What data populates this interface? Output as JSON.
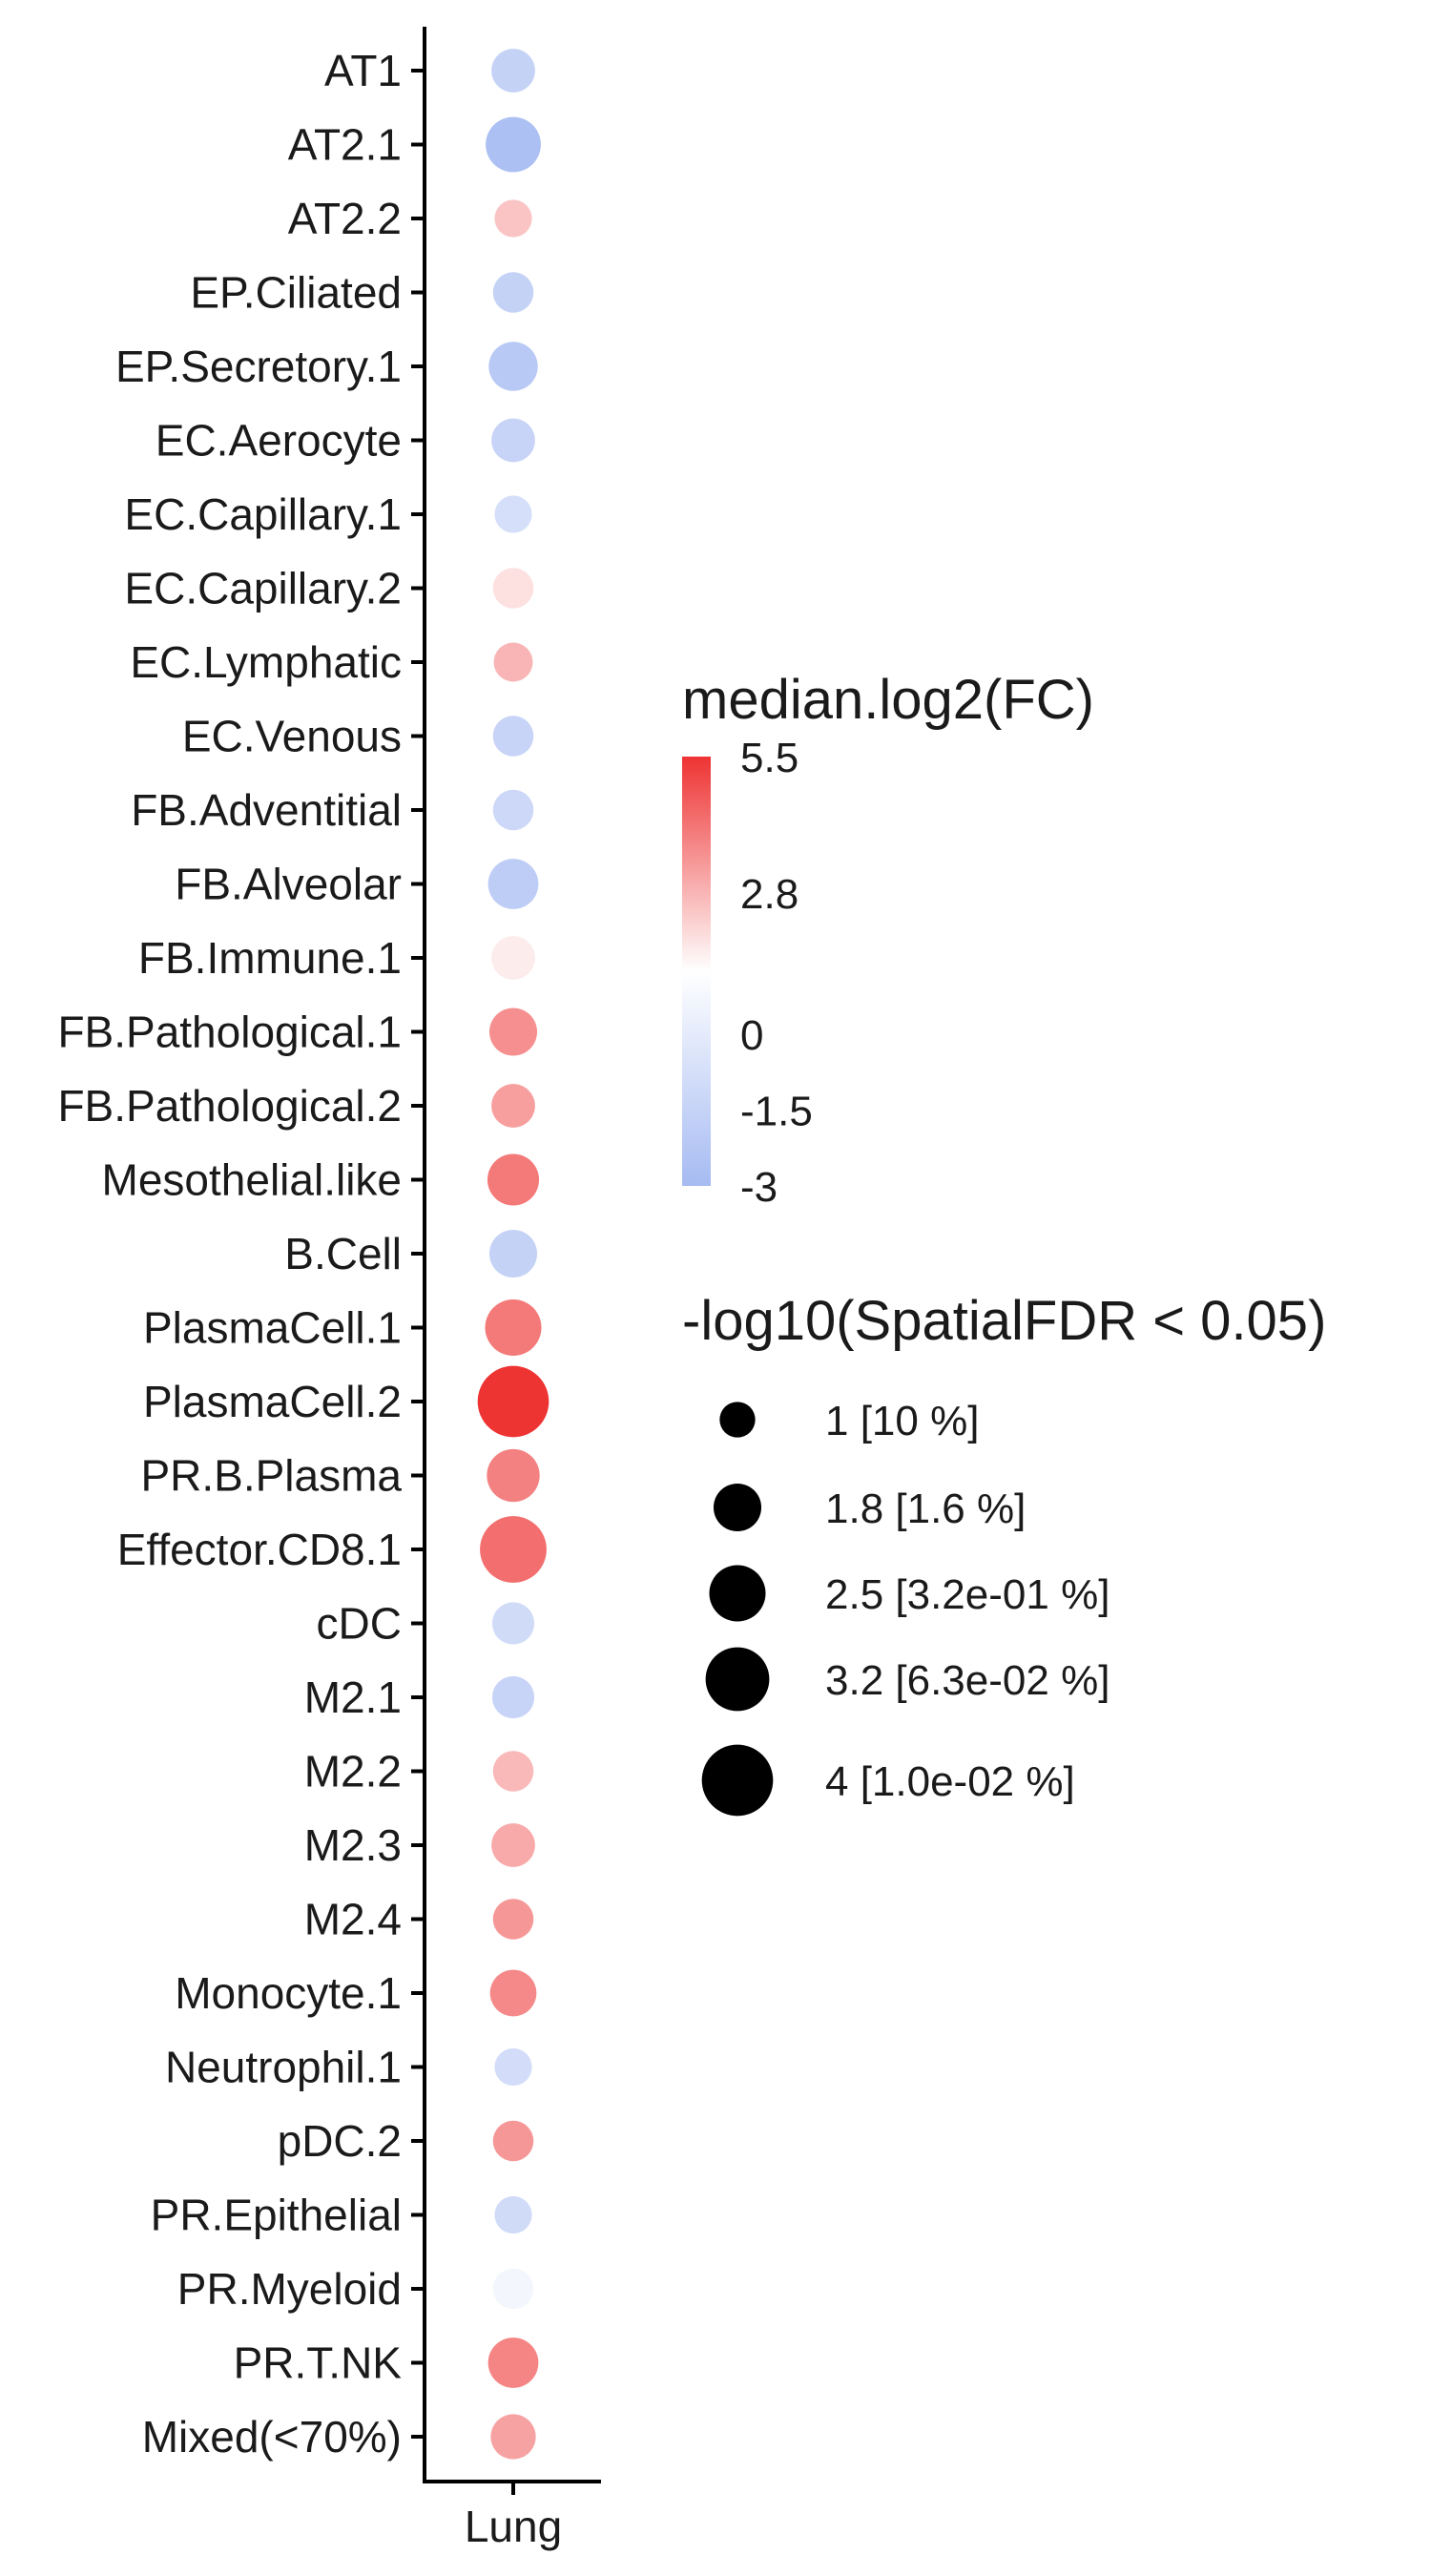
{
  "chart_data": {
    "type": "scatter",
    "subtype": "dot-plot",
    "x_categories": [
      "Lung"
    ],
    "categories": [
      "AT1",
      "AT2.1",
      "AT2.2",
      "EP.Ciliated",
      "EP.Secretory.1",
      "EC.Aerocyte",
      "EC.Capillary.1",
      "EC.Capillary.2",
      "EC.Lymphatic",
      "EC.Venous",
      "FB.Adventitial",
      "FB.Alveolar",
      "FB.Immune.1",
      "FB.Pathological.1",
      "FB.Pathological.2",
      "Mesothelial.like",
      "B.Cell",
      "PlasmaCell.1",
      "PlasmaCell.2",
      "PR.B.Plasma",
      "Effector.CD8.1",
      "cDC",
      "M2.1",
      "M2.2",
      "M2.3",
      "M2.4",
      "Monocyte.1",
      "Neutrophil.1",
      "pDC.2",
      "PR.Epithelial",
      "PR.Myeloid",
      "PR.T.NK",
      "Mixed(<70%)"
    ],
    "log2fc": [
      -2.0,
      -2.8,
      1.6,
      -2.0,
      -2.4,
      -1.9,
      -1.4,
      0.8,
      2.0,
      -1.9,
      -1.7,
      -2.2,
      0.5,
      3.0,
      2.6,
      3.6,
      -2.0,
      3.6,
      5.5,
      3.4,
      3.9,
      -1.6,
      -1.9,
      1.9,
      2.3,
      2.8,
      3.2,
      -1.5,
      2.8,
      -1.6,
      -0.4,
      3.3,
      2.5
    ],
    "neg_log10_fdr": [
      1.5,
      2.4,
      1.1,
      1.3,
      1.9,
      1.5,
      1.1,
      1.3,
      1.2,
      1.3,
      1.3,
      2.0,
      1.5,
      1.8,
      1.5,
      2.1,
      1.8,
      2.5,
      4.0,
      2.2,
      3.5,
      1.4,
      1.4,
      1.3,
      1.5,
      1.3,
      1.7,
      1.1,
      1.3,
      1.1,
      1.3,
      2.0,
      1.6
    ],
    "color_legend": {
      "title": "median.log2(FC)",
      "tick_labels": [
        "5.5",
        "2.8",
        "0",
        "-1.5",
        "-3"
      ],
      "tick_values": [
        5.5,
        2.8,
        0,
        -1.5,
        -3
      ],
      "range": [
        -3,
        5.5
      ],
      "low_color": "#a6bbf2",
      "mid_color": "#ffffff",
      "high_color": "#ee3333"
    },
    "size_legend": {
      "title": "-log10(SpatialFDR < 0.05)",
      "values": [
        1,
        1.8,
        2.5,
        3.2,
        4
      ],
      "labels": [
        "1 [10 %]",
        "1.8 [1.6 %]",
        "2.5 [3.2e-01 %]",
        "3.2 [6.3e-02 %]",
        "4 [1.0e-02 %]"
      ],
      "color": "#000000"
    },
    "xlabel": "",
    "ylabel": ""
  }
}
